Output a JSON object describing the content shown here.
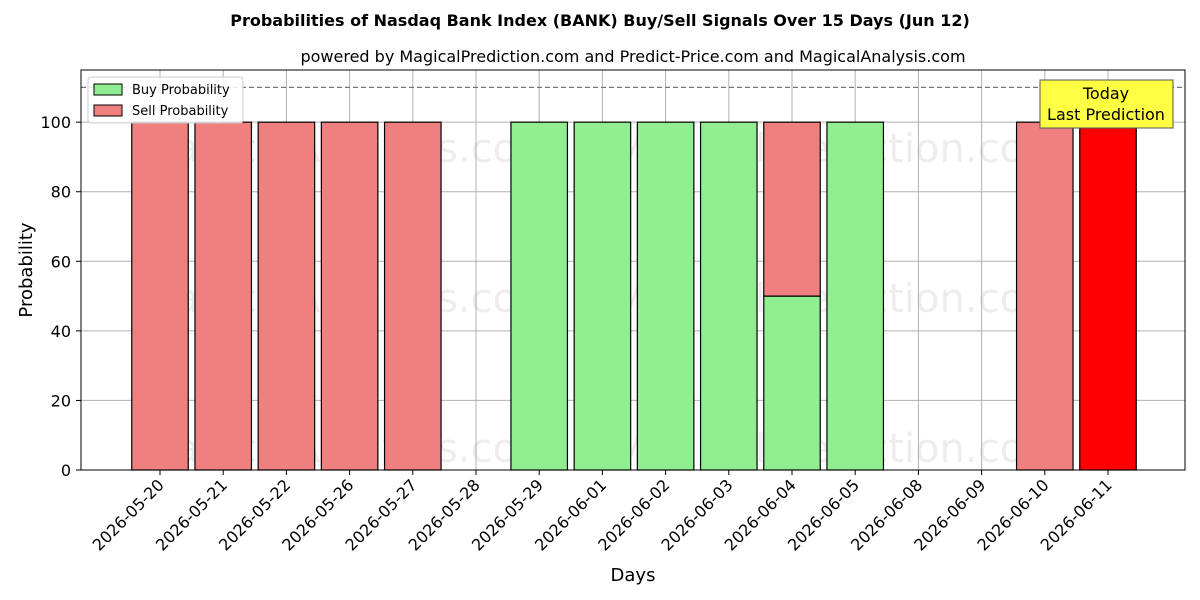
{
  "chart_data": {
    "type": "bar",
    "stacked": true,
    "title": "Probabilities of Nasdaq Bank Index (BANK) Buy/Sell Signals Over 15 Days (Jun 12)",
    "subtitle": "powered by MagicalPrediction.com and Predict-Price.com and MagicalAnalysis.com",
    "xlabel": "Days",
    "ylabel": "Probability",
    "ylim": [
      0,
      115
    ],
    "yticks": [
      0,
      20,
      40,
      60,
      80,
      100
    ],
    "reference_line": 110,
    "grid": true,
    "legend_placement": "top-left",
    "categories": [
      "2026-05-20",
      "2026-05-21",
      "2026-05-22",
      "2026-05-26",
      "2026-05-27",
      "2026-05-28",
      "2026-05-29",
      "2026-06-01",
      "2026-06-02",
      "2026-06-03",
      "2026-06-04",
      "2026-06-05",
      "2026-06-08",
      "2026-06-09",
      "2026-06-10",
      "2026-06-11"
    ],
    "series": [
      {
        "name": "Buy Probability",
        "color": "#90ee90",
        "values": [
          0,
          0,
          0,
          0,
          0,
          0,
          100,
          100,
          100,
          100,
          50,
          100,
          0,
          0,
          0,
          0
        ]
      },
      {
        "name": "Sell Probability",
        "color": "#f08080",
        "values": [
          100,
          100,
          100,
          100,
          100,
          0,
          0,
          0,
          0,
          0,
          50,
          0,
          0,
          0,
          100,
          100
        ]
      }
    ],
    "highlight": {
      "category": "2026-06-11",
      "color": "#ff0000",
      "annotation": [
        "Today",
        "Last Prediction"
      ],
      "annotation_bg": "#ffff44"
    },
    "watermarks": [
      "MagicalAnalysis.com",
      "MagicalPrediction.com"
    ]
  }
}
